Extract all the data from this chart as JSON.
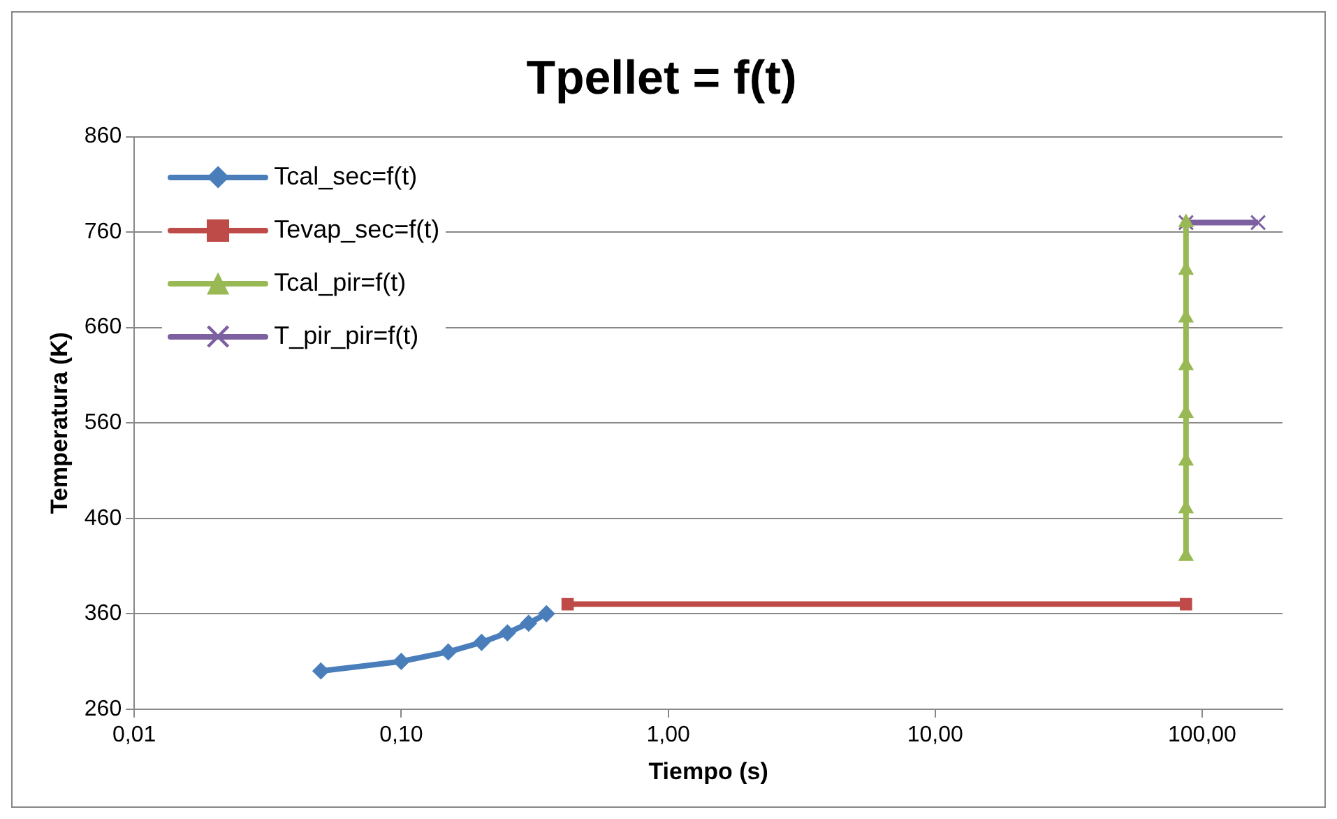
{
  "chart_data": {
    "type": "line",
    "title": "Tpellet = f(t)",
    "xlabel": "Tiempo (s)",
    "ylabel": "Temperatura (K)",
    "log": "x",
    "grid": "y",
    "legend": "top left",
    "line_style": "solid",
    "xlim": [
      0.01,
      200
    ],
    "xticks": [
      {
        "value": 0.01,
        "label": "0,01"
      },
      {
        "value": 0.1,
        "label": "0,10"
      },
      {
        "value": 1,
        "label": "1,00"
      },
      {
        "value": 10,
        "label": "10,00"
      },
      {
        "value": 100,
        "label": "100,00"
      }
    ],
    "ylim": [
      260,
      860
    ],
    "yticks": [
      260,
      360,
      460,
      560,
      660,
      760,
      860
    ],
    "series": [
      {
        "name": "Tcal_sec=f(t)",
        "color": "#4a7ebb",
        "marker": "diamond",
        "x": [
          0.05,
          0.1,
          0.15,
          0.2,
          0.25,
          0.3,
          0.35
        ],
        "values": [
          300,
          310,
          320,
          330,
          340,
          350,
          360
        ]
      },
      {
        "name": "Tevap_sec=f(t)",
        "color": "#be4b48",
        "marker": "square",
        "x": [
          0.42,
          87
        ],
        "values": [
          370,
          370
        ]
      },
      {
        "name": "Tcal_pir=f(t)",
        "color": "#98b954",
        "marker": "triangle",
        "x": [
          87,
          87,
          87,
          87,
          87,
          87,
          87,
          87
        ],
        "values": [
          420,
          470,
          520,
          570,
          620,
          670,
          720,
          770
        ]
      },
      {
        "name": "T_pir_pir=f(t)",
        "color": "#7d60a0",
        "marker": "cross",
        "x": [
          87,
          162
        ],
        "values": [
          770,
          770
        ]
      }
    ]
  }
}
